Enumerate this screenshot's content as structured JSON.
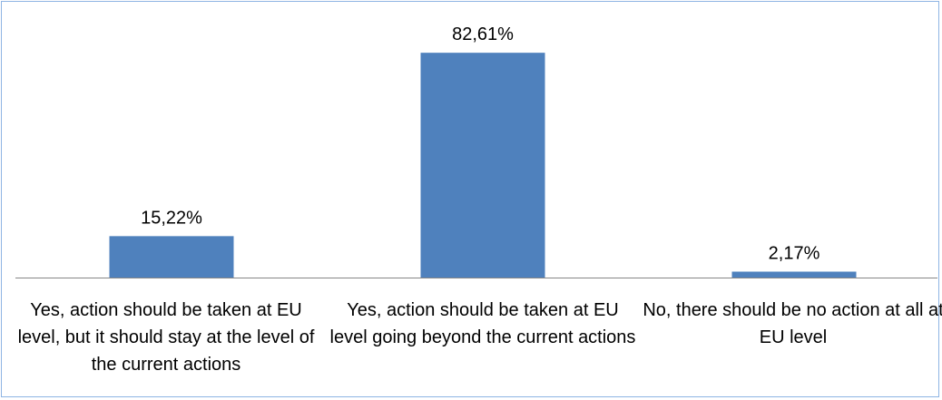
{
  "chart_data": {
    "type": "bar",
    "title": "",
    "xlabel": "",
    "ylabel": "",
    "categories": [
      "Yes, action should be taken at EU level, but it should stay at the level of the current actions",
      "Yes, action should be taken at EU level going beyond the current actions",
      "No, there should be no action at all at EU level"
    ],
    "values": [
      15.22,
      82.61,
      2.17
    ],
    "value_labels": [
      "15,22%",
      "82,61%",
      "2,17%"
    ],
    "ylim": [
      0,
      100
    ],
    "grid": false,
    "legend": "none",
    "bar_color": "#4f81bd",
    "axis_color": "#868686",
    "border_color": "#8eb4e3"
  }
}
